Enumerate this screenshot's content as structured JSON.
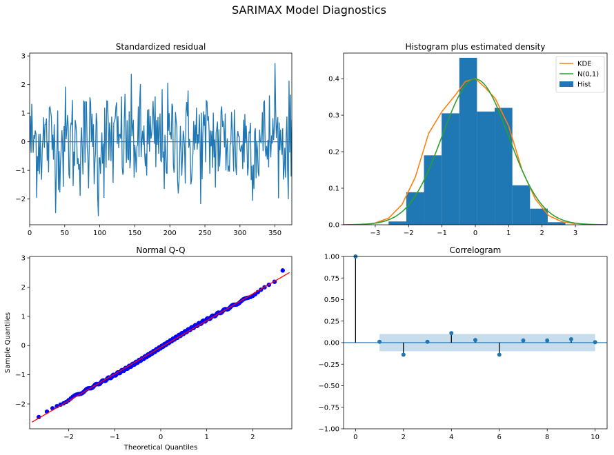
{
  "figure": {
    "title": "SARIMAX Model Diagnostics"
  },
  "colors": {
    "blue": "#1f77b4",
    "orange": "#ff7f0e",
    "green": "#2ca02c",
    "qq_points": "#0000ff",
    "qq_line": "#ff0000",
    "conf_band": "#1f77b4"
  },
  "chart_data": [
    {
      "type": "line",
      "title": "Standardized residual",
      "xlim": [
        0,
        374
      ],
      "ylim": [
        -2.9,
        3.1
      ],
      "xticks": [
        0,
        50,
        100,
        150,
        200,
        250,
        300,
        350
      ],
      "yticks": [
        -2,
        -1,
        0,
        1,
        2,
        3
      ],
      "zero_line": 0,
      "n_points": 375,
      "y_range_observed": [
        -2.6,
        2.75
      ],
      "series": [
        {
          "values_note": "",
          "color": "#1f77b4"
        }
      ]
    },
    {
      "type": "bar",
      "title": "Histogram plus estimated density",
      "xlim": [
        -3.95,
        3.95
      ],
      "ylim": [
        0,
        0.47
      ],
      "xticks": [
        -3,
        -2,
        -1,
        0,
        1,
        2,
        3
      ],
      "yticks": [
        0.0,
        0.1,
        0.2,
        0.3,
        0.4
      ],
      "legend": [
        "KDE",
        "N(0,1)",
        "Hist"
      ],
      "legend_position": "top-right",
      "bins": [
        -2.6,
        -2.07,
        -1.54,
        -1.01,
        -0.48,
        0.05,
        0.58,
        1.11,
        1.64,
        2.17,
        2.7
      ],
      "densities": [
        0.009,
        0.089,
        0.19,
        0.305,
        0.457,
        0.31,
        0.32,
        0.108,
        0.044,
        0.007
      ],
      "kde": {
        "x": [
          -3.0,
          -2.6,
          -2.2,
          -1.8,
          -1.4,
          -1.0,
          -0.6,
          -0.3,
          0.0,
          0.3,
          0.6,
          1.0,
          1.4,
          1.8,
          2.2,
          2.6,
          3.0
        ],
        "y": [
          0.005,
          0.018,
          0.055,
          0.13,
          0.25,
          0.31,
          0.355,
          0.392,
          0.4,
          0.375,
          0.345,
          0.27,
          0.15,
          0.07,
          0.025,
          0.008,
          0.003
        ]
      },
      "normal": {
        "mean": 0,
        "std": 1
      }
    },
    {
      "type": "scatter",
      "title": "Normal Q-Q",
      "xlabel": "Theoretical Quantiles",
      "ylabel": "Sample Quantiles",
      "xlim": [
        -2.85,
        2.85
      ],
      "ylim": [
        -2.85,
        3.05
      ],
      "xticks": [
        -2,
        -1,
        0,
        1,
        2
      ],
      "yticks": [
        -2,
        -1,
        0,
        1,
        2,
        3
      ],
      "reference_line": {
        "x": [
          -2.8,
          2.8
        ],
        "y": [
          -2.62,
          2.5
        ]
      },
      "n_points": 375
    },
    {
      "type": "stem",
      "title": "Correlogram",
      "xlim": [
        -0.5,
        10.5
      ],
      "ylim": [
        -1.0,
        1.0
      ],
      "xticks": [
        0,
        2,
        4,
        6,
        8,
        10
      ],
      "yticks": [
        -1.0,
        -0.75,
        -0.5,
        -0.25,
        0.0,
        0.25,
        0.5,
        0.75,
        1.0
      ],
      "lags": [
        0,
        1,
        2,
        3,
        4,
        5,
        6,
        7,
        8,
        9,
        10
      ],
      "values": [
        1.0,
        0.01,
        -0.14,
        0.01,
        0.11,
        0.03,
        -0.14,
        0.025,
        0.025,
        0.04,
        0.005
      ],
      "confidence_band": [
        -0.1,
        0.1
      ]
    }
  ]
}
